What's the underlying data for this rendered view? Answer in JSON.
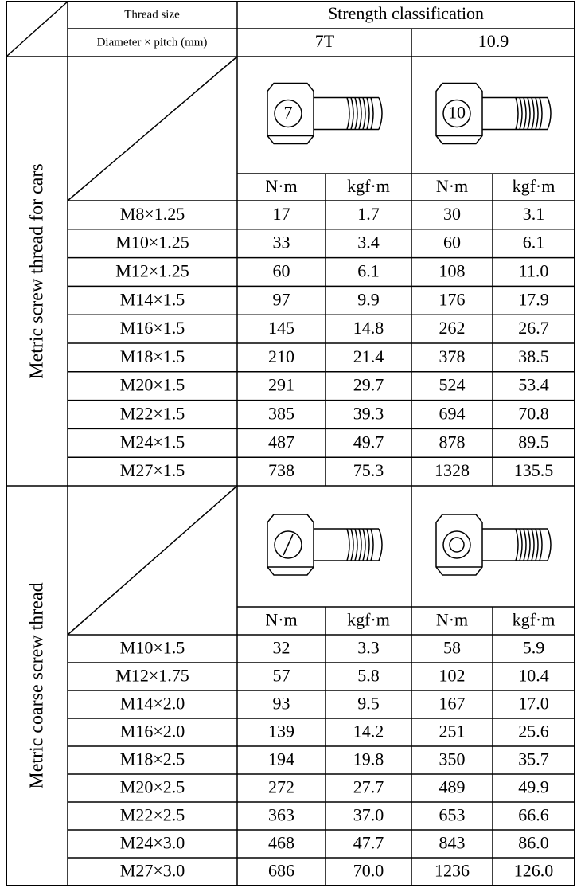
{
  "header": {
    "thread_size": "Thread size",
    "diameter_pitch": "Diameter × pitch (mm)",
    "strength": "Strength classification",
    "classes": [
      "7T",
      "10.9"
    ]
  },
  "sections": [
    {
      "label": "Metric screw thread for cars",
      "head_marks": [
        "7",
        "10"
      ],
      "units": [
        "N·m",
        "kgf·m",
        "N·m",
        "kgf·m"
      ],
      "rows": [
        [
          "M8×1.25",
          "17",
          "1.7",
          "30",
          "3.1"
        ],
        [
          "M10×1.25",
          "33",
          "3.4",
          "60",
          "6.1"
        ],
        [
          "M12×1.25",
          "60",
          "6.1",
          "108",
          "11.0"
        ],
        [
          "M14×1.5",
          "97",
          "9.9",
          "176",
          "17.9"
        ],
        [
          "M16×1.5",
          "145",
          "14.8",
          "262",
          "26.7"
        ],
        [
          "M18×1.5",
          "210",
          "21.4",
          "378",
          "38.5"
        ],
        [
          "M20×1.5",
          "291",
          "29.7",
          "524",
          "53.4"
        ],
        [
          "M22×1.5",
          "385",
          "39.3",
          "694",
          "70.8"
        ],
        [
          "M24×1.5",
          "487",
          "49.7",
          "878",
          "89.5"
        ],
        [
          "M27×1.5",
          "738",
          "75.3",
          "1328",
          "135.5"
        ]
      ]
    },
    {
      "label": "Metric coarse screw thread",
      "units": [
        "N·m",
        "kgf·m",
        "N·m",
        "kgf·m"
      ],
      "rows": [
        [
          "M10×1.5",
          "32",
          "3.3",
          "58",
          "5.9"
        ],
        [
          "M12×1.75",
          "57",
          "5.8",
          "102",
          "10.4"
        ],
        [
          "M14×2.0",
          "93",
          "9.5",
          "167",
          "17.0"
        ],
        [
          "M16×2.0",
          "139",
          "14.2",
          "251",
          "25.6"
        ],
        [
          "M18×2.5",
          "194",
          "19.8",
          "350",
          "35.7"
        ],
        [
          "M20×2.5",
          "272",
          "27.7",
          "489",
          "49.9"
        ],
        [
          "M22×2.5",
          "363",
          "37.0",
          "653",
          "66.6"
        ],
        [
          "M24×3.0",
          "468",
          "47.7",
          "843",
          "86.0"
        ],
        [
          "M27×3.0",
          "686",
          "70.0",
          "1236",
          "126.0"
        ]
      ]
    }
  ]
}
